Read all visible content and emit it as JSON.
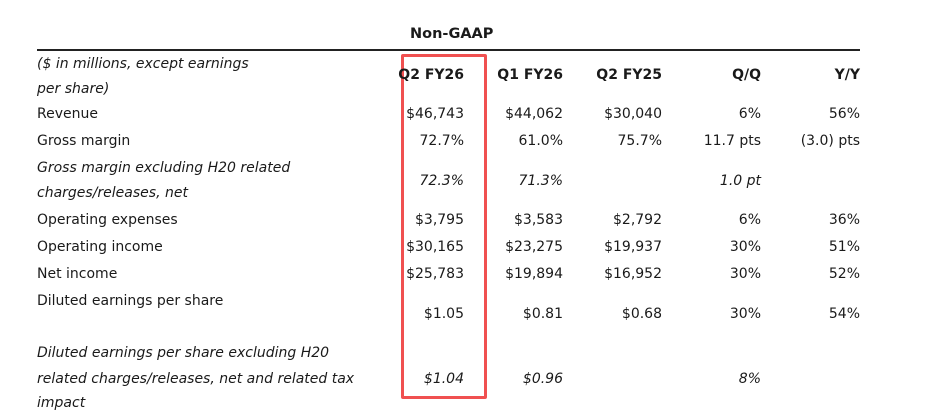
{
  "title": "Non-GAAP",
  "highlight_color": "#f05050",
  "header": {
    "label_line1": "($ in millions, except earnings",
    "label_line2": "per share)",
    "columns": [
      "Q2 FY26",
      "Q1 FY26",
      "Q2 FY25",
      "Q/Q",
      "Y/Y"
    ]
  },
  "rows": [
    {
      "label": "Revenue",
      "values": [
        "$46,743",
        "$44,062",
        "$30,040",
        "6%",
        "56%"
      ]
    },
    {
      "label": "Gross margin",
      "values": [
        "72.7%",
        "61.0%",
        "75.7%",
        "11.7 pts",
        "(3.0) pts"
      ]
    },
    {
      "label_line1": "Gross margin excluding H20 related",
      "label_line2": "charges/releases, net",
      "values": [
        "72.3%",
        "71.3%",
        "",
        "1.0 pt",
        ""
      ]
    },
    {
      "label": "Operating expenses",
      "values": [
        "$3,795",
        "$3,583",
        "$2,792",
        "6%",
        "36%"
      ]
    },
    {
      "label": "Operating income",
      "values": [
        "$30,165",
        "$23,275",
        "$19,937",
        "30%",
        "51%"
      ]
    },
    {
      "label": "Net income",
      "values": [
        "$25,783",
        "$19,894",
        "$16,952",
        "30%",
        "52%"
      ]
    },
    {
      "label": "Diluted earnings per share",
      "values": [
        "$1.05",
        "$0.81",
        "$0.68",
        "30%",
        "54%"
      ]
    },
    {
      "label_line1": "Diluted earnings per share excluding H20",
      "label_line2": "related charges/releases, net and related tax",
      "label_line3": "impact",
      "values": [
        "$1.04",
        "$0.96",
        "",
        "8%",
        ""
      ]
    }
  ]
}
